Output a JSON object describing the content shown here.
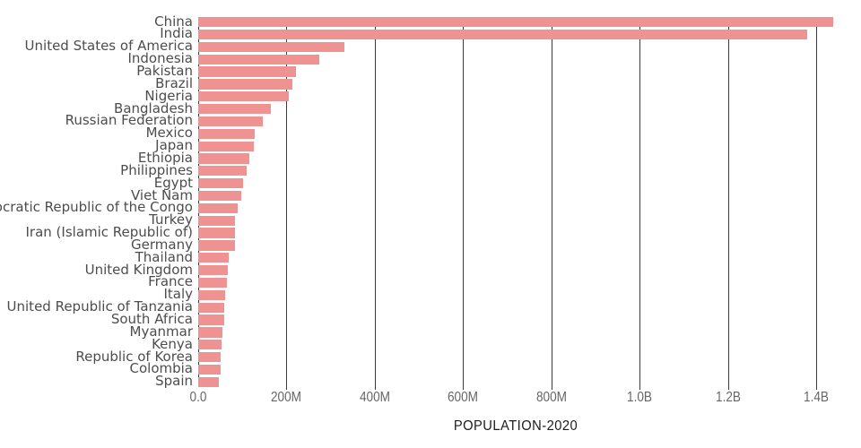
{
  "chart_data": {
    "type": "bar",
    "orientation": "horizontal",
    "title": "",
    "xlabel": "POPULATION-2020",
    "ylabel": "",
    "categories": [
      "China",
      "India",
      "United States of America",
      "Indonesia",
      "Pakistan",
      "Brazil",
      "Nigeria",
      "Bangladesh",
      "Russian Federation",
      "Mexico",
      "Japan",
      "Ethiopia",
      "Philippines",
      "Egypt",
      "Viet Nam",
      "Democratic Republic of the Congo",
      "Turkey",
      "Iran (Islamic Republic of)",
      "Germany",
      "Thailand",
      "United Kingdom",
      "France",
      "Italy",
      "United Republic of Tanzania",
      "South Africa",
      "Myanmar",
      "Kenya",
      "Republic of Korea",
      "Colombia",
      "Spain"
    ],
    "values_millions": [
      1439.3,
      1380.0,
      331.0,
      273.5,
      220.9,
      212.6,
      206.1,
      164.7,
      145.9,
      128.9,
      126.5,
      115.0,
      109.6,
      102.3,
      97.3,
      89.6,
      84.3,
      84.0,
      83.8,
      69.8,
      67.9,
      65.3,
      60.5,
      59.7,
      59.3,
      54.4,
      53.8,
      51.3,
      50.9,
      46.8
    ],
    "x_ticks": [
      {
        "label": "0.0",
        "value_millions": 0
      },
      {
        "label": "200M",
        "value_millions": 200
      },
      {
        "label": "400M",
        "value_millions": 400
      },
      {
        "label": "600M",
        "value_millions": 600
      },
      {
        "label": "800M",
        "value_millions": 800
      },
      {
        "label": "1.0B",
        "value_millions": 1000
      },
      {
        "label": "1.2B",
        "value_millions": 1200
      },
      {
        "label": "1.4B",
        "value_millions": 1400
      }
    ],
    "xlim_millions": [
      0,
      1470
    ],
    "grid": true,
    "legend_position": "none",
    "bar_color": "#ee9292",
    "gridline_color": "#3a3a3a",
    "tick_label_color": "#666666",
    "category_label_color": "#4d4d4d",
    "axis_title_color": "#1c1c1c"
  }
}
